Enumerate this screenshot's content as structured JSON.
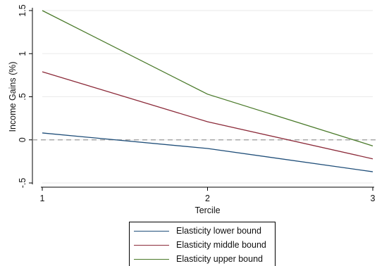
{
  "chart_data": {
    "type": "line",
    "xlabel": "Tercile",
    "ylabel": "Income Gains (%)",
    "x": [
      1,
      2,
      3
    ],
    "x_ticks": [
      "1",
      "2",
      "3"
    ],
    "y_ticks": [
      "-.5",
      "0",
      ".5",
      "1",
      "1.5"
    ],
    "y_tick_values": [
      -0.5,
      0,
      0.5,
      1,
      1.5
    ],
    "xlim": [
      1,
      3
    ],
    "ylim": [
      -0.5,
      1.5
    ],
    "reference_line": {
      "y": 0,
      "style": "dashed",
      "color": "#999999"
    },
    "grid": "horizontal",
    "legend_position": "bottom",
    "series": [
      {
        "name": "Elasticity lower bound",
        "values": [
          0.08,
          -0.1,
          -0.37
        ],
        "color": "#1f4e79"
      },
      {
        "name": "Elasticity middle bound",
        "values": [
          0.79,
          0.21,
          -0.22
        ],
        "color": "#8c2b3a"
      },
      {
        "name": "Elasticity upper bound",
        "values": [
          1.5,
          0.53,
          -0.07
        ],
        "color": "#4a7a2a"
      }
    ]
  }
}
